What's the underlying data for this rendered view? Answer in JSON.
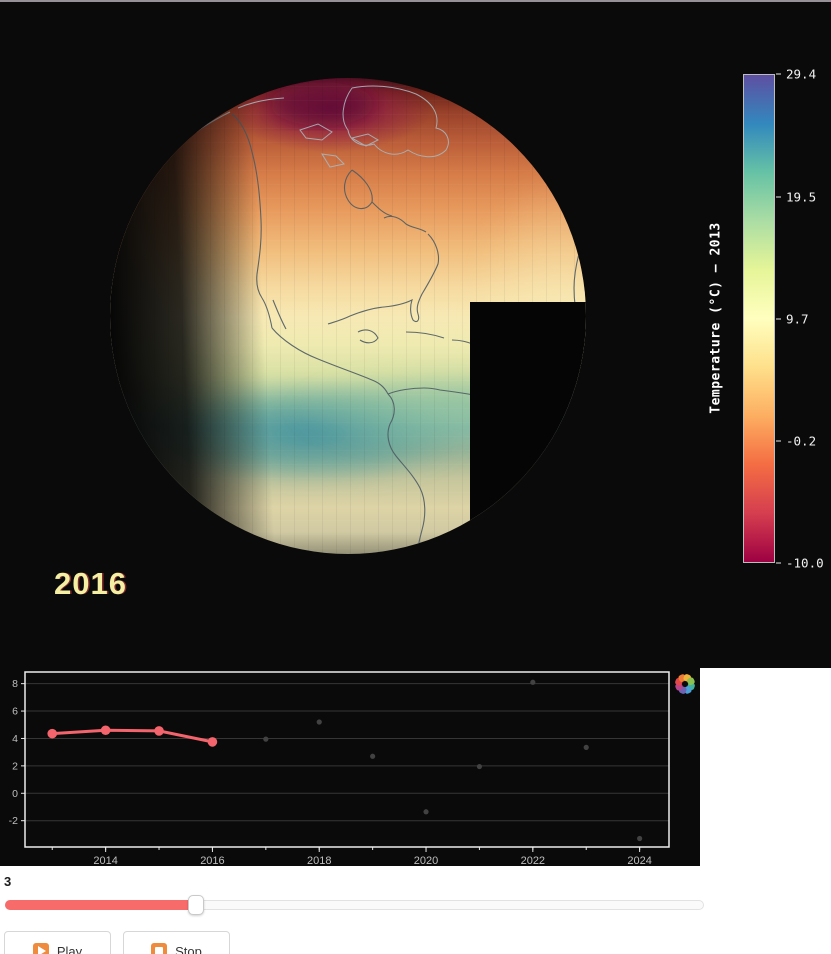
{
  "globe": {
    "year_label": "2016",
    "year_label_color": "#f4efa2"
  },
  "colorbar": {
    "title": "Temperature (°C) — 2013",
    "min": -10.0,
    "max": 29.4,
    "ticks": [
      29.4,
      19.5,
      9.7,
      -0.2,
      -10.0
    ],
    "tick_labels": [
      "29.4",
      "19.5",
      "9.7",
      "-0.2",
      "-10.0"
    ],
    "stops": [
      "#9e0142",
      "#d53e4f",
      "#f46d43",
      "#fdae61",
      "#fee08b",
      "#ffffbf",
      "#e6f598",
      "#abdda4",
      "#66c2a5",
      "#3288bd",
      "#5e4fa2"
    ]
  },
  "chart_data": {
    "type": "line",
    "x": [
      2013,
      2014,
      2015,
      2016,
      2017,
      2018,
      2019,
      2020,
      2021,
      2022,
      2023,
      2024
    ],
    "series": [
      {
        "name": "played-frames",
        "type": "line+markers",
        "color": "#f4646c",
        "x": [
          2013,
          2014,
          2015,
          2016
        ],
        "values": [
          4.35,
          4.6,
          4.55,
          3.75
        ]
      },
      {
        "name": "remaining-frames",
        "type": "scatter",
        "color": "#424242",
        "x": [
          2017,
          2018,
          2019,
          2020,
          2021,
          2022,
          2023,
          2024
        ],
        "values": [
          3.95,
          5.2,
          2.7,
          -1.35,
          1.95,
          8.1,
          3.35,
          -3.3
        ]
      }
    ],
    "xticks": [
      2014,
      2016,
      2018,
      2020,
      2022,
      2024
    ],
    "xtick_labels": [
      "2014",
      "2016",
      "2018",
      "2020",
      "2022",
      "2024"
    ],
    "yticks": [
      -2,
      0,
      2,
      4,
      6,
      8
    ],
    "ytick_labels": [
      "-2",
      "0",
      "2",
      "4",
      "6",
      "8"
    ],
    "xlim": [
      2012.49,
      2024.55
    ],
    "ylim": [
      -3.92,
      8.85
    ],
    "grid": "horizontal",
    "background": "#0a0a0a",
    "title": "",
    "xlabel": "",
    "ylabel": ""
  },
  "slider": {
    "label": "3",
    "fill_percent": 27.3,
    "fill_color": "#f76b6b"
  },
  "buttons": {
    "play_label": "Play",
    "stop_label": "Stop",
    "icon_color": "#ee8b3c"
  },
  "logo_colors": [
    "#43b29d",
    "#4aa0d8",
    "#6d63b5",
    "#b8468b",
    "#e0484a",
    "#ef7c35",
    "#f2b33b",
    "#8cc051"
  ]
}
